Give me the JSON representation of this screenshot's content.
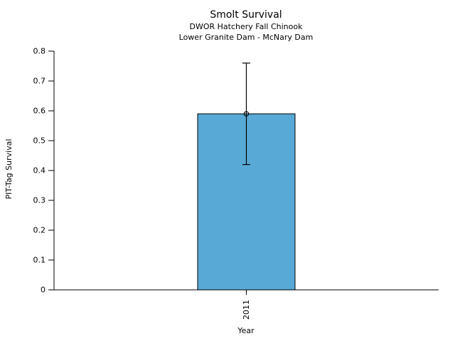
{
  "chart_data": {
    "type": "bar",
    "title": "Smolt Survival",
    "subtitle_lines": [
      "DWOR Hatchery Fall Chinook",
      "Lower Granite Dam - McNary Dam"
    ],
    "xlabel": "Year",
    "ylabel": "PIT-Tag Survival",
    "categories": [
      "2011"
    ],
    "series": [
      {
        "name": "PIT-Tag Survival",
        "values": [
          0.59
        ],
        "error_low": [
          0.42
        ],
        "error_high": [
          0.76
        ]
      }
    ],
    "ylim": [
      0,
      0.8
    ],
    "yticks": [
      0,
      0.1,
      0.2,
      0.3,
      0.4,
      0.5,
      0.6,
      0.7,
      0.8
    ],
    "ytick_labels": [
      "0",
      "0.1",
      "0.2",
      "0.3",
      "0.4",
      "0.5",
      "0.6",
      "0.7",
      "0.8"
    ],
    "xtick_rotation_deg": -90,
    "grid": false,
    "legend": "none",
    "marker": "open-circle",
    "bar_color": "#58A9D6",
    "bar_edge_color": "#000000",
    "error_color": "#000000",
    "text_color": "#000000",
    "background_color": "#ffffff"
  }
}
